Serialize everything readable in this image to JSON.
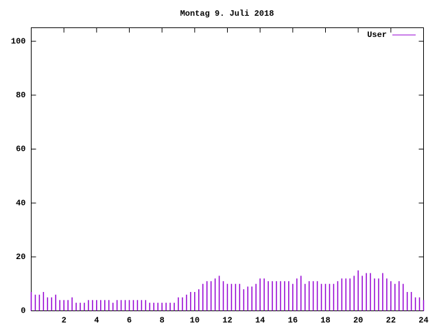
{
  "chart_data": {
    "type": "impulse",
    "title": "Montag 9. Juli 2018",
    "x": [
      0,
      0.25,
      0.5,
      0.75,
      1,
      1.25,
      1.5,
      1.75,
      2,
      2.25,
      2.5,
      2.75,
      3,
      3.25,
      3.5,
      3.75,
      4,
      4.25,
      4.5,
      4.75,
      5,
      5.25,
      5.5,
      5.75,
      6,
      6.25,
      6.5,
      6.75,
      7,
      7.25,
      7.5,
      7.75,
      8,
      8.25,
      8.5,
      8.75,
      9,
      9.25,
      9.5,
      9.75,
      10,
      10.25,
      10.5,
      10.75,
      11,
      11.25,
      11.5,
      11.75,
      12,
      12.25,
      12.5,
      12.75,
      13,
      13.25,
      13.5,
      13.75,
      14,
      14.25,
      14.5,
      14.75,
      15,
      15.25,
      15.5,
      15.75,
      16,
      16.25,
      16.5,
      16.75,
      17,
      17.25,
      17.5,
      17.75,
      18,
      18.25,
      18.5,
      18.75,
      19,
      19.25,
      19.5,
      19.75,
      20,
      20.25,
      20.5,
      20.75,
      21,
      21.25,
      21.5,
      21.75,
      22,
      22.25,
      22.5,
      22.75,
      23,
      23.25,
      23.5,
      23.75,
      24
    ],
    "series": [
      {
        "name": "User",
        "color": "#9400d3",
        "values": [
          7,
          6,
          6,
          7,
          5,
          5,
          6,
          4,
          4,
          4,
          5,
          3,
          3,
          3,
          4,
          4,
          4,
          4,
          4,
          4,
          3,
          4,
          4,
          4,
          4,
          4,
          4,
          4,
          4,
          3,
          3,
          3,
          3,
          3,
          3,
          3,
          5,
          5,
          6,
          7,
          7,
          8,
          10,
          11,
          11,
          12,
          13,
          11,
          10,
          10,
          10,
          10,
          8,
          9,
          9,
          10,
          12,
          12,
          11,
          11,
          11,
          11,
          11,
          11,
          10,
          12,
          13,
          10,
          11,
          11,
          11,
          10,
          10,
          10,
          10,
          11,
          12,
          12,
          12,
          13,
          15,
          13,
          14,
          14,
          12,
          12,
          14,
          12,
          11,
          10,
          11,
          10,
          7,
          7,
          5,
          5,
          4
        ]
      }
    ],
    "xlim": [
      0,
      24
    ],
    "xticks": [
      2,
      4,
      6,
      8,
      10,
      12,
      14,
      16,
      18,
      20,
      22,
      24
    ],
    "ylim": [
      0,
      105
    ],
    "yticks": [
      0,
      20,
      40,
      60,
      80,
      100
    ],
    "legend": "top-right"
  }
}
